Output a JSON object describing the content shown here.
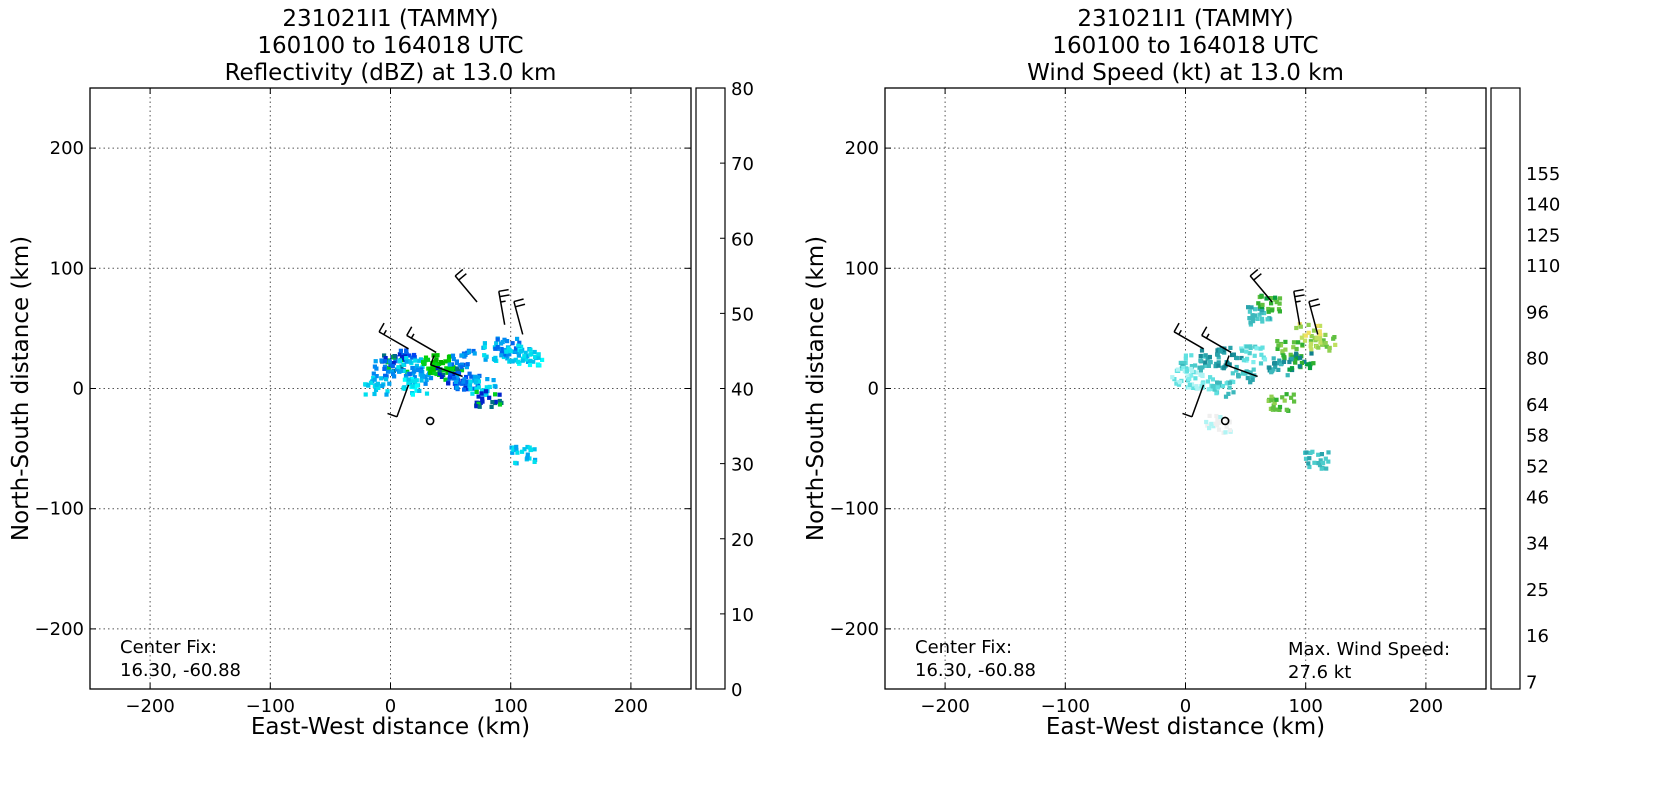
{
  "chart_data": [
    {
      "type": "heatmap",
      "title": [
        "231021I1 (TAMMY)",
        "160100 to 164018 UTC",
        "Reflectivity (dBZ) at 13.0 km"
      ],
      "xlabel": "East-West distance (km)",
      "ylabel": "North-South distance (km)",
      "xlim": [
        -250,
        250
      ],
      "ylim": [
        -250,
        250
      ],
      "xticks": [
        -200,
        -100,
        0,
        100,
        200
      ],
      "yticks": [
        -200,
        -100,
        0,
        100,
        200
      ],
      "grid": true,
      "annotation": [
        "Center Fix:",
        "16.30, -60.88"
      ],
      "colorbar": {
        "min": 0,
        "max": 80,
        "tick_values": [
          0,
          10,
          20,
          30,
          40,
          50,
          60,
          70,
          80
        ],
        "tick_labels": [
          "0",
          "10",
          "20",
          "30",
          "40",
          "50",
          "60",
          "70",
          "80"
        ],
        "colors": [
          "#00ffff",
          "#00e0ee",
          "#00c3ee",
          "#00a5f2",
          "#0088f2",
          "#0066ee",
          "#0044f2",
          "#0022cc",
          "#007080",
          "#00d020",
          "#00e000",
          "#00d400",
          "#00c400",
          "#00b200",
          "#00a000",
          "#008c00",
          "#5aba00",
          "#b0d800",
          "#ffff00",
          "#f0e000",
          "#e8c800",
          "#e8b000",
          "#f09000",
          "#f07400",
          "#ff5c00",
          "#ff3000",
          "#ff0000",
          "#ee0000",
          "#dd0000",
          "#cc0000",
          "#c40010",
          "#dd0066",
          "#ee00cc",
          "#ee22ee",
          "#cc44e0",
          "#aa55cc",
          "#8844aa",
          "#442255",
          "#000000"
        ]
      },
      "echo_regions": [
        {
          "x": 8,
          "y": 27,
          "dbz": 6
        },
        {
          "x": 2,
          "y": 22,
          "dbz": 8
        },
        {
          "x": -5,
          "y": 18,
          "dbz": 4
        },
        {
          "x": 15,
          "y": 20,
          "dbz": 2
        },
        {
          "x": 22,
          "y": 12,
          "dbz": 4
        },
        {
          "x": 35,
          "y": 20,
          "dbz": 10
        },
        {
          "x": 42,
          "y": 22,
          "dbz": 12
        },
        {
          "x": 48,
          "y": 14,
          "dbz": 8
        },
        {
          "x": 55,
          "y": 8,
          "dbz": 6
        },
        {
          "x": 62,
          "y": 6,
          "dbz": 4
        },
        {
          "x": 58,
          "y": 26,
          "dbz": 4
        },
        {
          "x": 75,
          "y": 3,
          "dbz": 2
        },
        {
          "x": 86,
          "y": 32,
          "dbz": 2
        },
        {
          "x": 96,
          "y": 36,
          "dbz": 4
        },
        {
          "x": 105,
          "y": 30,
          "dbz": 2
        },
        {
          "x": 115,
          "y": 28,
          "dbz": 1
        },
        {
          "x": 80,
          "y": -8,
          "dbz": 8
        },
        {
          "x": 108,
          "y": -54,
          "dbz": 2
        },
        {
          "x": -12,
          "y": 4,
          "dbz": 2
        },
        {
          "x": 18,
          "y": 4,
          "dbz": 1
        }
      ],
      "wind_barbs": [
        {
          "x": 72,
          "y": 72,
          "dir_deg": 320,
          "kt": 20
        },
        {
          "x": 95,
          "y": 53,
          "dir_deg": 350,
          "kt": 25
        },
        {
          "x": 110,
          "y": 45,
          "dir_deg": 345,
          "kt": 20
        },
        {
          "x": 15,
          "y": 33,
          "dir_deg": 300,
          "kt": 15
        },
        {
          "x": 38,
          "y": 30,
          "dir_deg": 300,
          "kt": 15
        },
        {
          "x": 15,
          "y": 3,
          "dir_deg": 200,
          "kt": 10
        },
        {
          "x": 60,
          "y": 10,
          "dir_deg": 290,
          "kt": 10
        }
      ],
      "center_marker": {
        "x": 33,
        "y": -27
      }
    },
    {
      "type": "heatmap",
      "title": [
        "231021I1 (TAMMY)",
        "160100 to 164018 UTC",
        "Wind Speed (kt) at 13.0 km"
      ],
      "xlabel": "East-West distance (km)",
      "ylabel": "North-South distance (km)",
      "xlim": [
        -250,
        250
      ],
      "ylim": [
        -250,
        250
      ],
      "xticks": [
        -200,
        -100,
        0,
        100,
        200
      ],
      "yticks": [
        -200,
        -100,
        0,
        100,
        200
      ],
      "grid": true,
      "annotation": [
        "Center Fix:",
        "16.30, -60.88"
      ],
      "annotation2": [
        "Max. Wind Speed:",
        "27.6 kt"
      ],
      "colorbar": {
        "min": 0,
        "max": 29,
        "tick_values": [
          1,
          4,
          7,
          10,
          13,
          16,
          19,
          22,
          25,
          28
        ],
        "tick_labels": [
          "7",
          "16",
          "25",
          "34",
          "46",
          "52",
          "58",
          "64",
          "80",
          "96",
          "110",
          "125",
          "140",
          "155"
        ],
        "label_bins": [
          1,
          4,
          7,
          10,
          13,
          15,
          17,
          19,
          22,
          25,
          28,
          30,
          32,
          34
        ],
        "colors": [
          "#efefef",
          "#b0f4f4",
          "#80eeee",
          "#60e0e0",
          "#4ccccc",
          "#3cb8bc",
          "#2aa4ac",
          "#1a8c98",
          "#10808c",
          "#08a040",
          "#30b030",
          "#60c040",
          "#90d050",
          "#c0e060",
          "#f0e060",
          "#ffc050",
          "#ff9040",
          "#ff6030",
          "#ff3020",
          "#ee1010",
          "#cc0000",
          "#aa0000",
          "#880000",
          "#7a1040",
          "#aa22aa",
          "#cc44ee",
          "#d870ee",
          "#e090ee",
          "#eab0ee",
          "#f0c0e8",
          "#f8b4d0",
          "#ffa8bc",
          "#ff90a0",
          "#ff7888",
          "#ff6070",
          "#ee4858",
          "#dd3850",
          "#c02848",
          "#a01848"
        ]
      },
      "wind_regions": [
        {
          "x": 5,
          "y": 22,
          "kt": 4
        },
        {
          "x": 20,
          "y": 26,
          "kt": 6
        },
        {
          "x": 35,
          "y": 28,
          "kt": 7
        },
        {
          "x": 45,
          "y": 14,
          "kt": 5
        },
        {
          "x": 55,
          "y": 30,
          "kt": 3
        },
        {
          "x": 10,
          "y": 8,
          "kt": 2
        },
        {
          "x": -4,
          "y": 12,
          "kt": 2
        },
        {
          "x": 28,
          "y": 2,
          "kt": 4
        },
        {
          "x": 85,
          "y": 34,
          "kt": 11
        },
        {
          "x": 100,
          "y": 48,
          "kt": 13
        },
        {
          "x": 112,
          "y": 40,
          "kt": 12
        },
        {
          "x": 95,
          "y": 24,
          "kt": 9
        },
        {
          "x": 78,
          "y": 20,
          "kt": 6
        },
        {
          "x": 58,
          "y": 62,
          "kt": 5
        },
        {
          "x": 68,
          "y": 73,
          "kt": 10
        },
        {
          "x": 25,
          "y": -28,
          "kt": 0
        },
        {
          "x": 78,
          "y": -10,
          "kt": 11
        },
        {
          "x": 108,
          "y": -58,
          "kt": 5
        }
      ],
      "wind_barbs": [
        {
          "x": 72,
          "y": 72,
          "dir_deg": 320,
          "kt": 20
        },
        {
          "x": 95,
          "y": 53,
          "dir_deg": 350,
          "kt": 25
        },
        {
          "x": 110,
          "y": 45,
          "dir_deg": 345,
          "kt": 20
        },
        {
          "x": 15,
          "y": 33,
          "dir_deg": 300,
          "kt": 15
        },
        {
          "x": 38,
          "y": 30,
          "dir_deg": 300,
          "kt": 15
        },
        {
          "x": 15,
          "y": 3,
          "dir_deg": 200,
          "kt": 10
        },
        {
          "x": 60,
          "y": 10,
          "dir_deg": 290,
          "kt": 10
        }
      ],
      "center_marker": {
        "x": 33,
        "y": -27
      }
    }
  ]
}
